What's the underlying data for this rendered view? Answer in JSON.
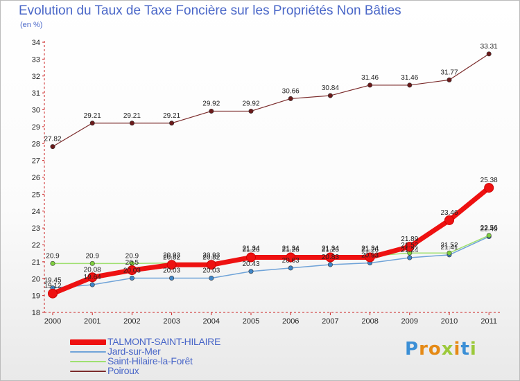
{
  "title": "Evolution du Taux de Taxe Foncière sur les Propriétés Non Bâties",
  "unit_label": "(en %)",
  "logo": "Proxiti",
  "chart_data": {
    "type": "line",
    "x": [
      "2000",
      "2001",
      "2002",
      "2003",
      "2004",
      "2005",
      "2006",
      "2007",
      "2008",
      "2009",
      "2010",
      "2011"
    ],
    "ylim": [
      18,
      34
    ],
    "yticks": [
      18,
      19,
      20,
      21,
      22,
      23,
      24,
      25,
      26,
      27,
      28,
      29,
      30,
      31,
      32,
      33,
      34
    ],
    "grid": false,
    "legend": "bottom-left",
    "series": [
      {
        "name": "Poiroux",
        "color": "#7b2b2b",
        "marker": "#6b1a1a",
        "width": 1.2,
        "values": [
          27.82,
          29.21,
          29.21,
          29.21,
          29.92,
          29.92,
          30.66,
          30.84,
          31.46,
          31.46,
          31.77,
          33.31
        ],
        "labels": [
          "27.82",
          "29.21",
          "29.21",
          "29.21",
          "29.92",
          "29.92",
          "30.66",
          "30.84",
          "31.46",
          "31.46",
          "31.77",
          "33.31"
        ]
      },
      {
        "name": "Jard-sur-Mer",
        "color": "#6fa3d8",
        "marker": "#3f86c8",
        "width": 1.5,
        "values": [
          19.45,
          19.64,
          20.03,
          20.03,
          20.03,
          20.43,
          20.63,
          20.83,
          20.93,
          21.24,
          21.41,
          22.49
        ],
        "labels": [
          "19.45",
          "19.64",
          "20.03",
          "20.03",
          "20.03",
          "20.43",
          "20.63",
          "20.83",
          "20.93",
          "21.24",
          "21.41",
          "22.49"
        ]
      },
      {
        "name": "Saint-Hilaire-la-Forêt",
        "color": "#9fe070",
        "marker": "#7fcf3f",
        "width": 1.5,
        "values": [
          20.9,
          20.9,
          20.9,
          20.93,
          20.93,
          21.34,
          21.34,
          21.34,
          21.34,
          21.52,
          21.52,
          22.56
        ],
        "labels": [
          "20.9",
          "20.9",
          "20.9",
          "20.93",
          "20.93",
          "21.34",
          "21.34",
          "21.34",
          "21.34",
          "21.52",
          "21.52",
          "22.56"
        ]
      },
      {
        "name": "TALMONT-SAINT-HILAIRE",
        "color": "#ee1111",
        "marker": "#ee1111",
        "width": 7,
        "values": [
          19.12,
          20.08,
          20.5,
          20.82,
          20.82,
          21.26,
          21.26,
          21.26,
          21.26,
          21.89,
          23.46,
          25.38
        ],
        "labels": [
          "19.12",
          "20.08",
          "20.5",
          "20.82",
          "20.82",
          "21.26",
          "21.26",
          "21.26",
          "21.26",
          "21.89",
          "23.46",
          "25.38"
        ]
      }
    ]
  },
  "legend_items": [
    {
      "name": "TALMONT-SAINT-HILAIRE",
      "color": "#ee1111",
      "thickness": 8
    },
    {
      "name": "Jard-sur-Mer",
      "color": "#6fa3d8",
      "thickness": 2
    },
    {
      "name": "Saint-Hilaire-la-Forêt",
      "color": "#9fe070",
      "thickness": 2
    },
    {
      "name": "Poiroux",
      "color": "#7b2b2b",
      "thickness": 2
    }
  ]
}
